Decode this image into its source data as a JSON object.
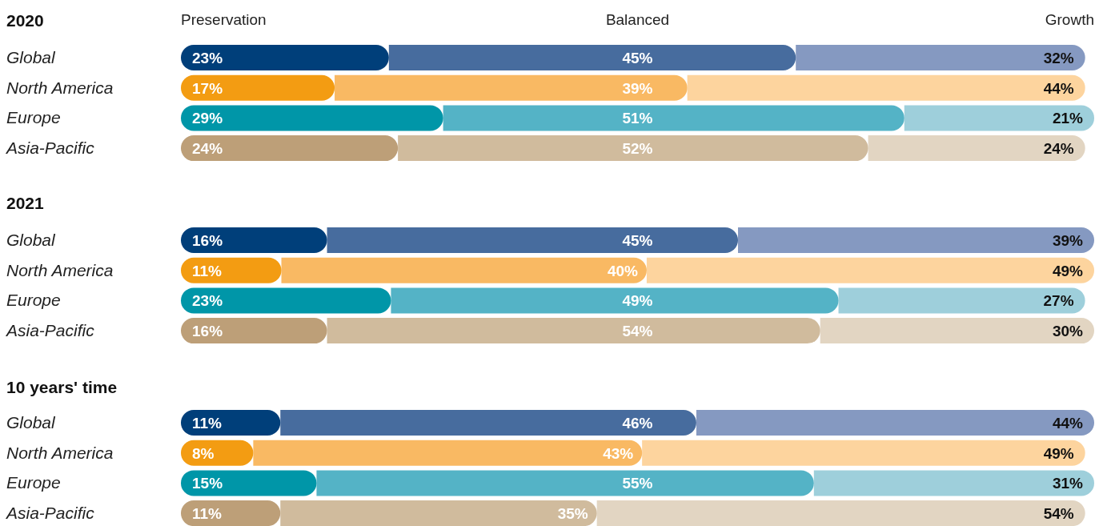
{
  "chart_data": [
    {
      "type": "bar",
      "orientation": "horizontal",
      "stacked": true,
      "title": "2020",
      "categories": [
        "Global",
        "North America",
        "Europe",
        "Asia-Pacific"
      ],
      "legend": "top",
      "series": [
        {
          "name": "Preservation",
          "values": [
            23,
            17,
            29,
            24
          ],
          "value_labels": [
            "23%",
            "17%",
            "29%",
            "24%"
          ],
          "colors": [
            "#003f7a",
            "#f39c12",
            "#0096a8",
            "#bd9f78"
          ]
        },
        {
          "name": "Balanced",
          "values": [
            45,
            39,
            51,
            52
          ],
          "value_labels": [
            "45%",
            "39%",
            "51%",
            "52%"
          ],
          "colors": [
            "#476c9e",
            "#f9b963",
            "#54b3c6",
            "#d0bb9d"
          ]
        },
        {
          "name": "Growth",
          "values": [
            32,
            44,
            21,
            24
          ],
          "value_labels": [
            "32%",
            "44%",
            "21%",
            "24%"
          ],
          "colors": [
            "#8599c1",
            "#fdd49e",
            "#9ecfdb",
            "#e2d5c2"
          ]
        }
      ]
    },
    {
      "type": "bar",
      "orientation": "horizontal",
      "stacked": true,
      "title": "2021",
      "categories": [
        "Global",
        "North America",
        "Europe",
        "Asia-Pacific"
      ],
      "series": [
        {
          "values": [
            16,
            11,
            23,
            16
          ],
          "value_labels": [
            "16%",
            "11%",
            "23%",
            "16%"
          ],
          "colors": [
            "#003f7a",
            "#f39c12",
            "#0096a8",
            "#bd9f78"
          ]
        },
        {
          "values": [
            45,
            40,
            49,
            54
          ],
          "value_labels": [
            "45%",
            "40%",
            "49%",
            "54%"
          ],
          "colors": [
            "#476c9e",
            "#f9b963",
            "#54b3c6",
            "#d0bb9d"
          ]
        },
        {
          "values": [
            39,
            49,
            27,
            30
          ],
          "value_labels": [
            "39%",
            "49%",
            "27%",
            "30%"
          ],
          "colors": [
            "#8599c1",
            "#fdd49e",
            "#9ecfdb",
            "#e2d5c2"
          ]
        }
      ]
    },
    {
      "type": "bar",
      "orientation": "horizontal",
      "stacked": true,
      "title": "10 years' time",
      "categories": [
        "Global",
        "North America",
        "Europe",
        "Asia-Pacific"
      ],
      "series": [
        {
          "values": [
            11,
            8,
            15,
            11
          ],
          "value_labels": [
            "11%",
            "8%",
            "15%",
            "11%"
          ],
          "colors": [
            "#003f7a",
            "#f39c12",
            "#0096a8",
            "#bd9f78"
          ]
        },
        {
          "values": [
            46,
            43,
            55,
            35
          ],
          "value_labels": [
            "46%",
            "43%",
            "55%",
            "35%"
          ],
          "colors": [
            "#476c9e",
            "#f9b963",
            "#54b3c6",
            "#d0bb9d"
          ]
        },
        {
          "values": [
            44,
            49,
            31,
            54
          ],
          "value_labels": [
            "44%",
            "49%",
            "31%",
            "54%"
          ],
          "colors": [
            "#8599c1",
            "#fdd49e",
            "#9ecfdb",
            "#e2d5c2"
          ]
        }
      ]
    }
  ]
}
